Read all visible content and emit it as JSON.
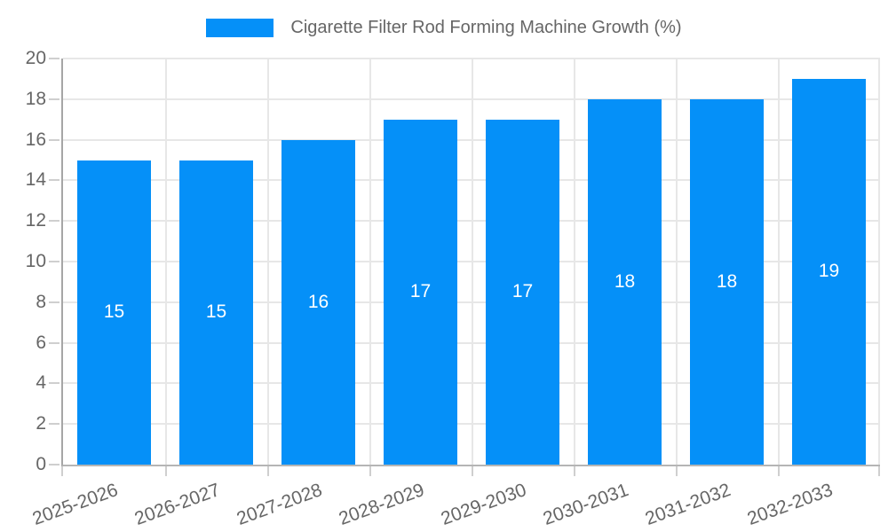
{
  "chart_data": {
    "type": "bar",
    "title": "Cigarette Filter Rod Forming Machine Growth (%)",
    "categories": [
      "2025-2026",
      "2026-2027",
      "2027-2028",
      "2028-2029",
      "2029-2030",
      "2030-2031",
      "2031-2032",
      "2032-2033"
    ],
    "values": [
      15,
      15,
      16,
      17,
      17,
      18,
      18,
      19
    ],
    "bar_labels": [
      "15",
      "15",
      "16",
      "17",
      "17",
      "18",
      "18",
      "19"
    ],
    "xlabel": "",
    "ylabel": "",
    "ylim": [
      0,
      20
    ],
    "ytick_step": 2,
    "ytick_labels": [
      "0",
      "2",
      "4",
      "6",
      "8",
      "10",
      "12",
      "14",
      "16",
      "18",
      "20"
    ],
    "grid": true,
    "legend_position": "top-center",
    "bar_color": "#0590F8",
    "bar_label_color": "#FFFFFF",
    "axis_text_color": "#666666",
    "grid_color": "#E7E7E7",
    "axis_line_color": "#A6A6A6",
    "x_tick_rotation_deg": -20
  }
}
